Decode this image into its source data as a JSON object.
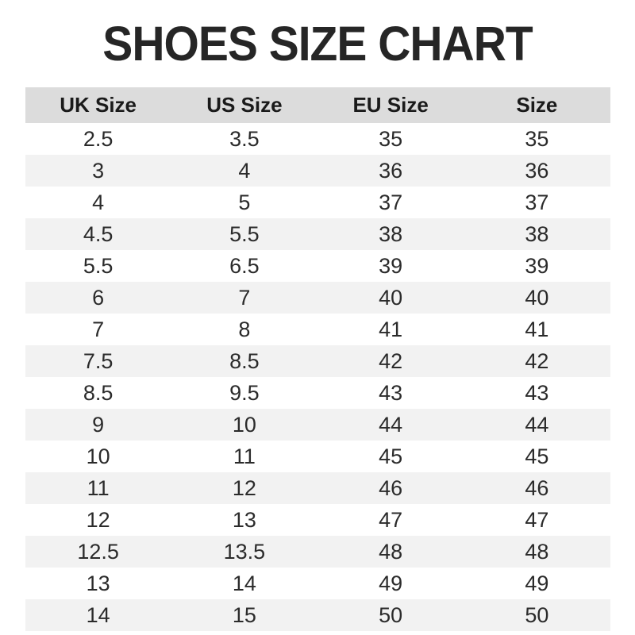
{
  "page": {
    "title": "SHOES SIZE CHART"
  },
  "colors": {
    "page_bg": "#ffffff",
    "title_text": "#262626",
    "header_bg": "#dcdcdc",
    "row_alt_bg": "#f2f2f2",
    "cell_text": "#2b2b2b"
  },
  "chart_data": {
    "type": "table",
    "title": "SHOES SIZE CHART",
    "columns": [
      "UK Size",
      "US Size",
      "EU Size",
      "Size"
    ],
    "rows": [
      [
        "2.5",
        "3.5",
        "35",
        "35"
      ],
      [
        "3",
        "4",
        "36",
        "36"
      ],
      [
        "4",
        "5",
        "37",
        "37"
      ],
      [
        "4.5",
        "5.5",
        "38",
        "38"
      ],
      [
        "5.5",
        "6.5",
        "39",
        "39"
      ],
      [
        "6",
        "7",
        "40",
        "40"
      ],
      [
        "7",
        "8",
        "41",
        "41"
      ],
      [
        "7.5",
        "8.5",
        "42",
        "42"
      ],
      [
        "8.5",
        "9.5",
        "43",
        "43"
      ],
      [
        "9",
        "10",
        "44",
        "44"
      ],
      [
        "10",
        "11",
        "45",
        "45"
      ],
      [
        "11",
        "12",
        "46",
        "46"
      ],
      [
        "12",
        "13",
        "47",
        "47"
      ],
      [
        "12.5",
        "13.5",
        "48",
        "48"
      ],
      [
        "13",
        "14",
        "49",
        "49"
      ],
      [
        "14",
        "15",
        "50",
        "50"
      ]
    ],
    "layout": {
      "row_striping": "alternating white / light gray starting white",
      "header_background": "gray",
      "text_alignment": "center"
    }
  }
}
